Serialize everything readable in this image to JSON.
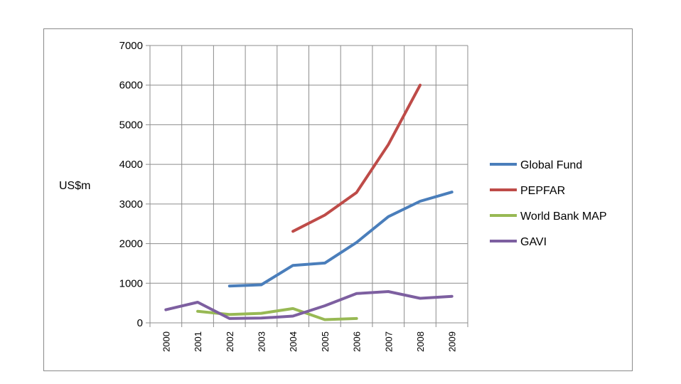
{
  "chart_data": {
    "type": "line",
    "title": "",
    "xlabel": "",
    "ylabel": "US$m",
    "x": [
      "2000",
      "2001",
      "2002",
      "2003",
      "2004",
      "2005",
      "2006",
      "2007",
      "2008",
      "2009"
    ],
    "ylim": [
      0,
      7000
    ],
    "yticks": [
      0,
      1000,
      2000,
      3000,
      4000,
      5000,
      6000,
      7000
    ],
    "grid": true,
    "legend": "right",
    "series": [
      {
        "name": "Global Fund",
        "color": "#4a7ebb",
        "values": [
          null,
          null,
          930,
          960,
          1450,
          1510,
          2030,
          2680,
          3070,
          3300
        ]
      },
      {
        "name": "PEPFAR",
        "color": "#be4b48",
        "values": [
          null,
          null,
          null,
          null,
          2310,
          2720,
          3290,
          4500,
          6000,
          null
        ]
      },
      {
        "name": "World Bank MAP",
        "color": "#98b954",
        "values": [
          null,
          290,
          210,
          240,
          360,
          80,
          110,
          null,
          null,
          null
        ]
      },
      {
        "name": "GAVI",
        "color": "#7d5fa0",
        "values": [
          330,
          520,
          110,
          120,
          170,
          430,
          740,
          790,
          620,
          670
        ]
      }
    ]
  }
}
